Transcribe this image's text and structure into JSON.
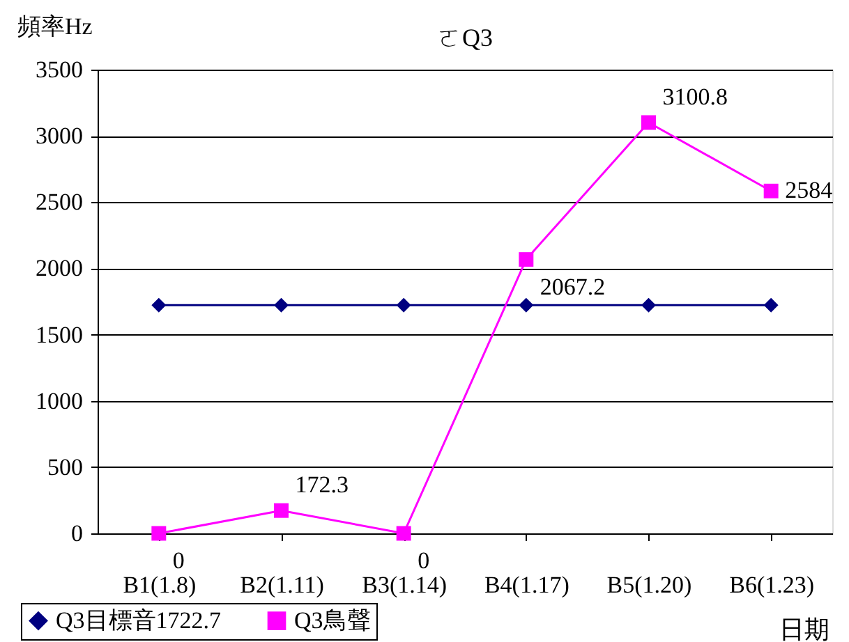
{
  "chart_data": {
    "type": "line",
    "title": "ㄛQ3",
    "ylabel": "頻率Hz",
    "xlabel": "日期",
    "categories": [
      "B1(1.8)",
      "B2(1.11)",
      "B3(1.14)",
      "B4(1.17)",
      "B5(1.20)",
      "B6(1.23)"
    ],
    "series": [
      {
        "name": "Q3目標音1722.7",
        "color": "#000080",
        "marker": "diamond",
        "values": [
          1722.7,
          1722.7,
          1722.7,
          1722.7,
          1722.7,
          1722.7
        ]
      },
      {
        "name": "Q3鳥聲",
        "color": "#ff00ff",
        "marker": "square",
        "values": [
          0,
          172.3,
          0,
          2067.2,
          3100.8,
          2584
        ],
        "value_labels": [
          "0",
          "172.3",
          "0",
          "2067.2",
          "3100.8",
          "2584"
        ]
      }
    ],
    "ylim": [
      0,
      3500
    ],
    "yticks": [
      0,
      500,
      1000,
      1500,
      2000,
      2500,
      3000,
      3500
    ],
    "grid": "y",
    "legend": "bottom left"
  }
}
